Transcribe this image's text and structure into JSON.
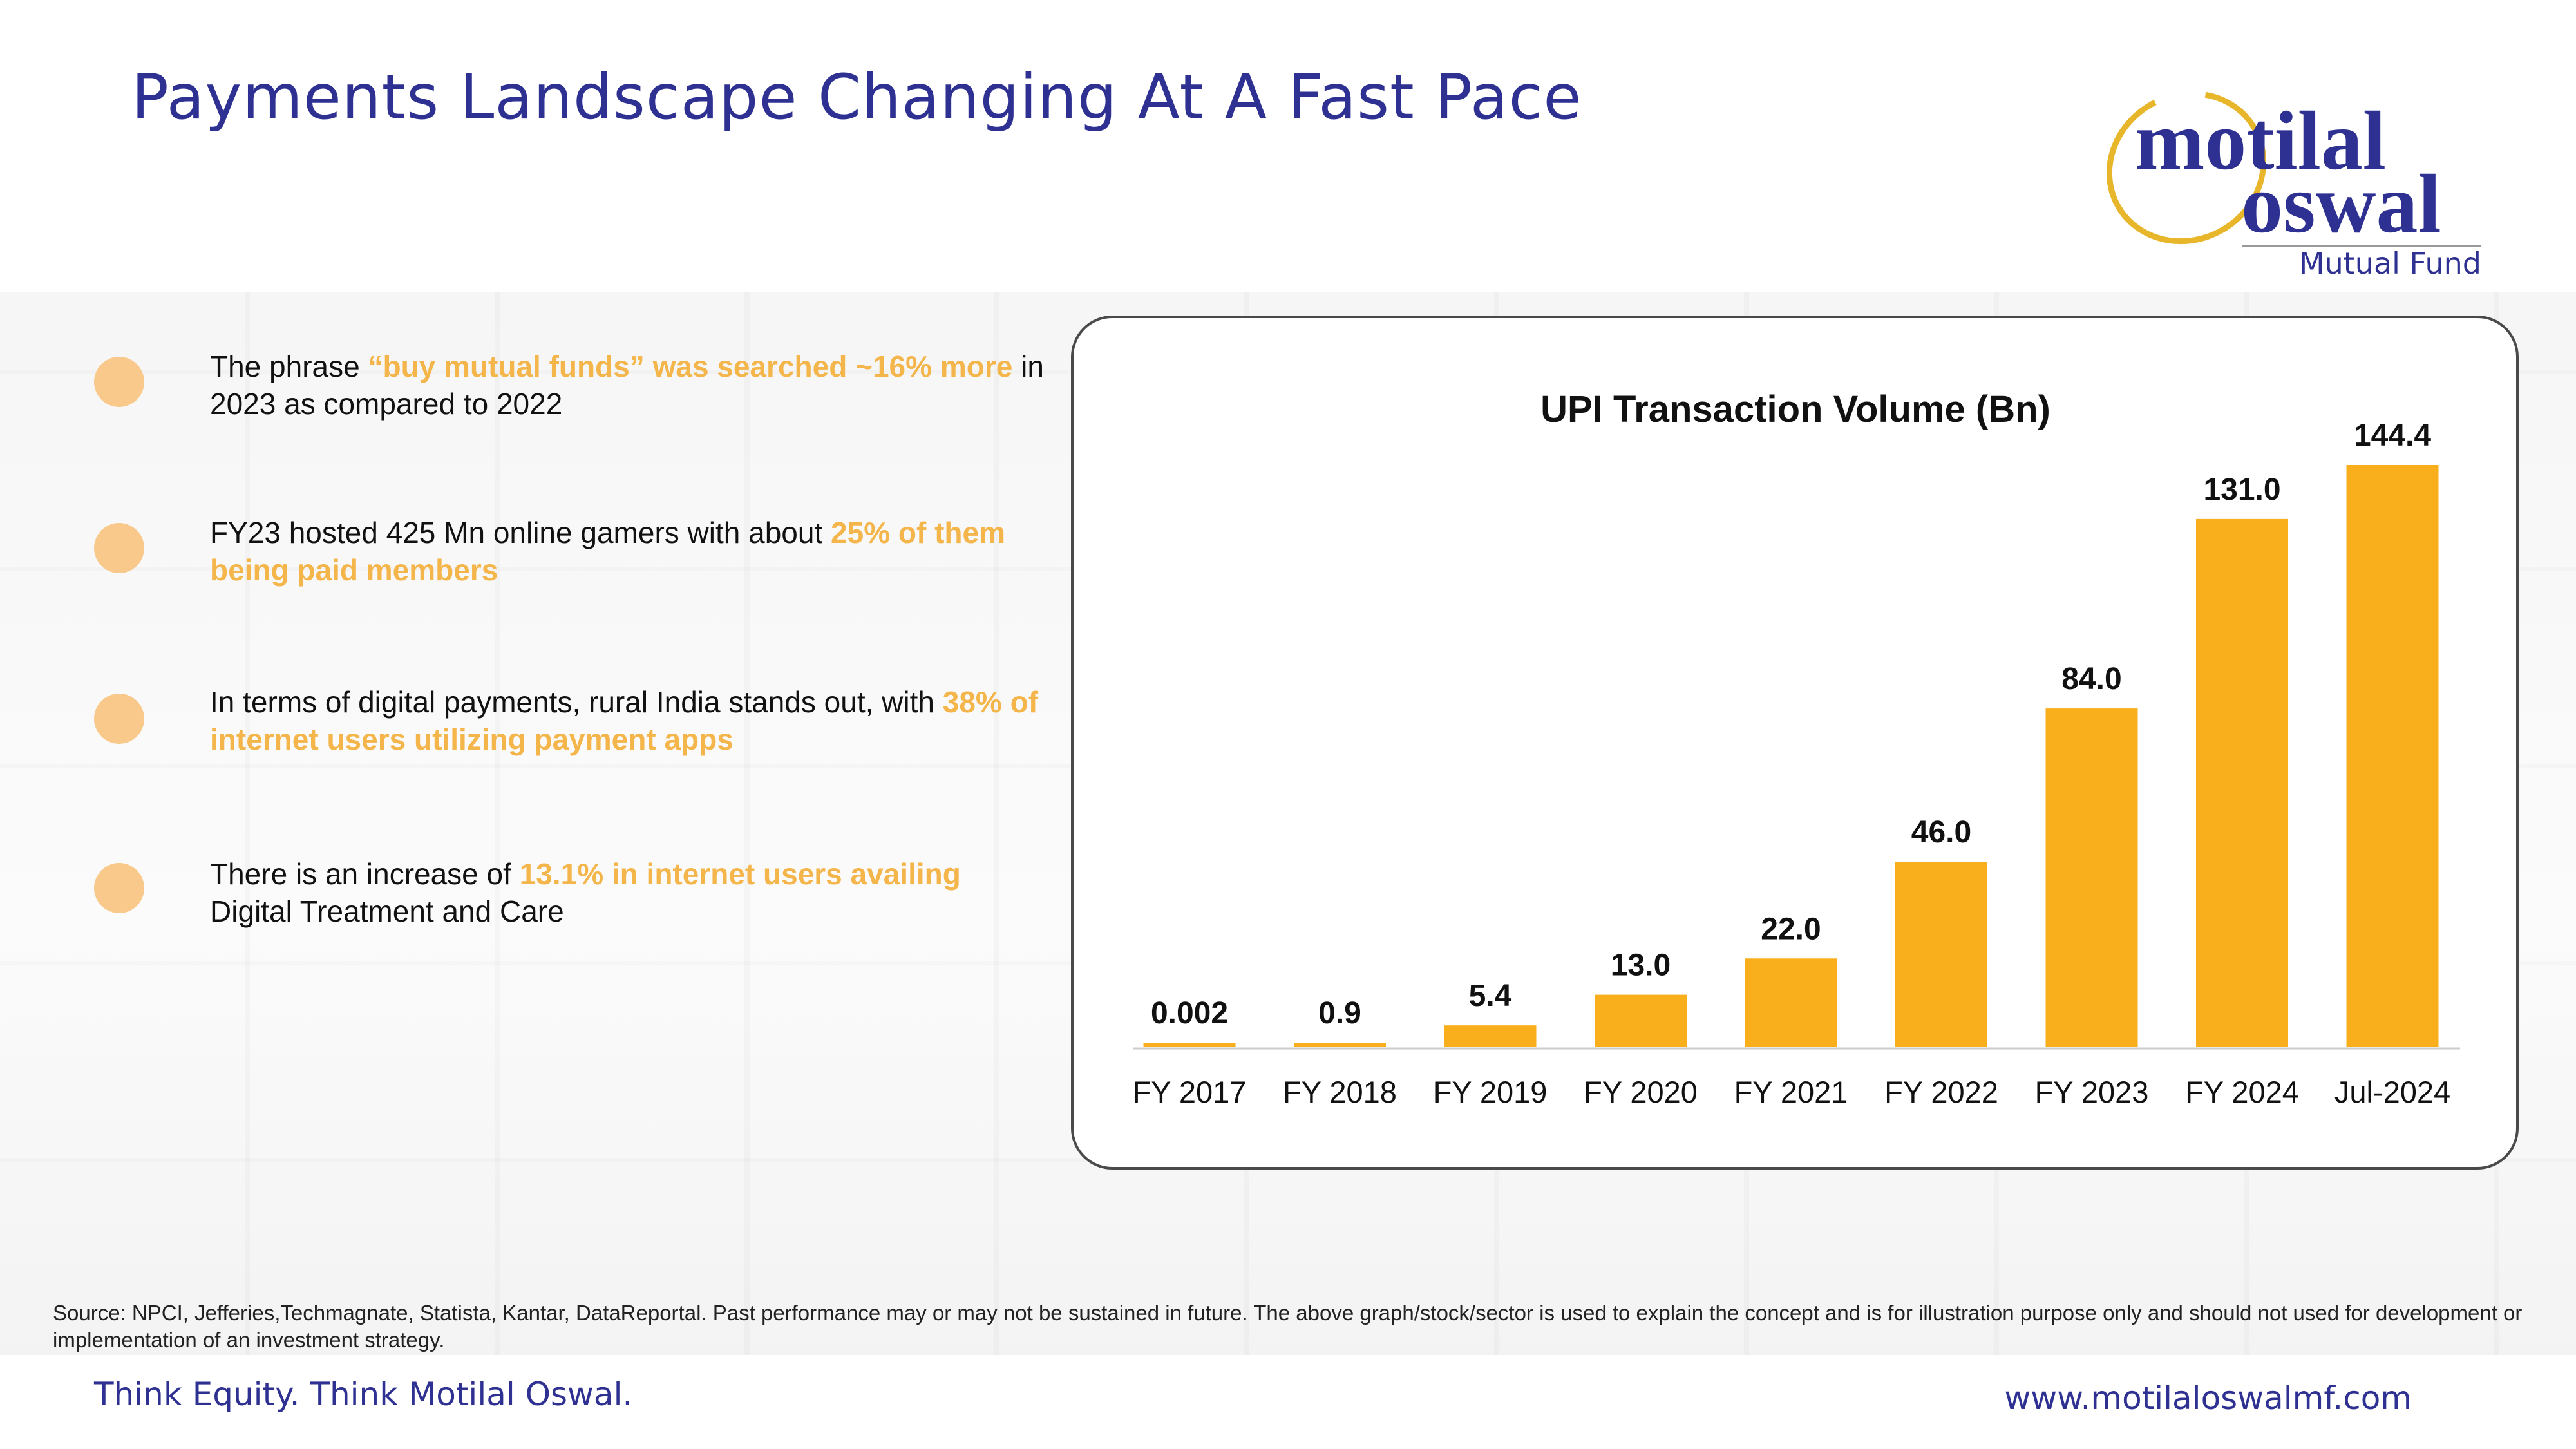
{
  "header": {
    "title": "Payments Landscape Changing At A Fast Pace"
  },
  "logo": {
    "line1": "motilal",
    "line2": "oswal",
    "line3": "Mutual Fund",
    "ring_color": "#e8b62a",
    "text_color": "#2e3192"
  },
  "bullets": [
    {
      "parts": [
        {
          "t": "The phrase ",
          "hl": false
        },
        {
          "t": "“buy mutual funds” was searched ~16% more",
          "hl": true
        },
        {
          "t": " in 2023 as compared to 2022",
          "hl": false
        }
      ]
    },
    {
      "parts": [
        {
          "t": "FY23 hosted 425 Mn online gamers with about ",
          "hl": false
        },
        {
          "t": "25% of them being paid members",
          "hl": true
        }
      ]
    },
    {
      "parts": [
        {
          "t": "In terms of digital payments, rural India stands out, with ",
          "hl": false
        },
        {
          "t": "38% of internet users utilizing payment apps",
          "hl": true
        }
      ]
    },
    {
      "parts": [
        {
          "t": "There is an increase of ",
          "hl": false
        },
        {
          "t": "13.1% in internet users availing",
          "hl": true
        },
        {
          "t": " Digital Treatment and Care",
          "hl": false
        }
      ]
    }
  ],
  "chart_data": {
    "type": "bar",
    "title": "UPI Transaction Volume (Bn)",
    "categories": [
      "FY 2017",
      "FY 2018",
      "FY 2019",
      "FY 2020",
      "FY 2021",
      "FY 2022",
      "FY 2023",
      "FY 2024",
      "Jul-2024"
    ],
    "values": [
      0.002,
      0.9,
      5.4,
      13.0,
      22.0,
      46.0,
      84.0,
      131.0,
      144.4
    ],
    "labels": [
      "0.002",
      "0.9",
      "5.4",
      "13.0",
      "22.0",
      "46.0",
      "84.0",
      "131.0",
      "144.4"
    ],
    "ylim": [
      0,
      144.4
    ],
    "grid": false,
    "bar_color": "#f9ae1b"
  },
  "footer": {
    "source": "Source: NPCI, Jefferies,Techmagnate, Statista, Kantar, DataReportal. Past performance may or may not be sustained in future. The above graph/stock/sector is used to explain the concept and is for illustration purpose only and should not used for development or implementation of an investment strategy.",
    "slogan": "Think Equity. Think Motilal Oswal.",
    "url": "www.motilaloswalmf.com"
  }
}
